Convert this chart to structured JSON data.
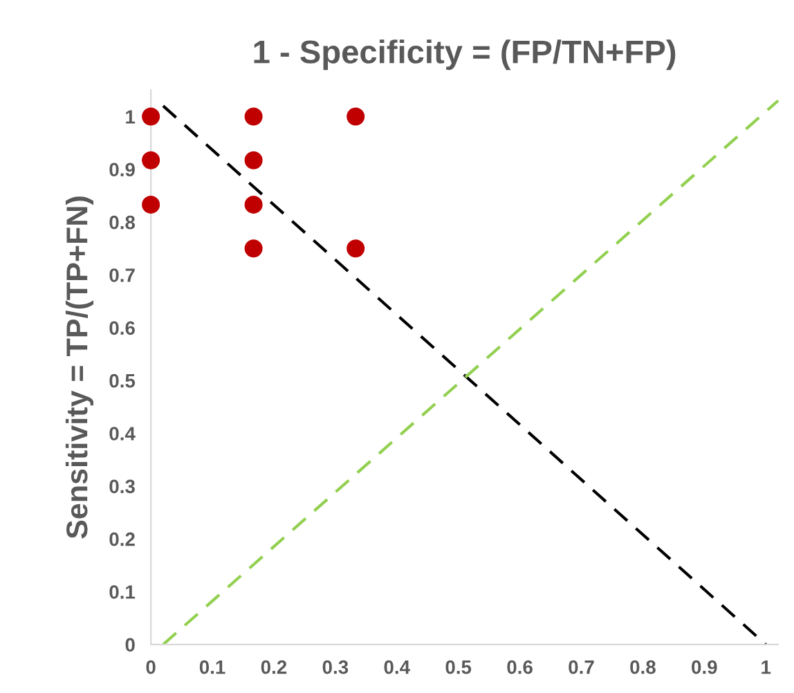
{
  "chart_data": {
    "type": "scatter",
    "xlabel": "1 - Specificity = (FP/TN+FP)",
    "ylabel": "Sensitivity = TP/(TP+FN)",
    "xlim": [
      0,
      1.02
    ],
    "ylim": [
      0,
      1.05
    ],
    "xticks": [
      0,
      0.1,
      0.2,
      0.3,
      0.4,
      0.5,
      0.6,
      0.7,
      0.8,
      0.9,
      1
    ],
    "yticks": [
      0,
      0.1,
      0.2,
      0.3,
      0.4,
      0.5,
      0.6,
      0.7,
      0.8,
      0.9,
      1
    ],
    "grid": false,
    "legend": false,
    "marker": "circle",
    "series": [
      {
        "type": "line",
        "color": "#000000",
        "line_style": "dashed",
        "marker": "none",
        "x": [
          0.02,
          1
        ],
        "values": [
          1.02,
          0
        ]
      },
      {
        "type": "line",
        "color": "#92d050",
        "line_style": "dashed",
        "marker": "none",
        "x": [
          0.02,
          1.02
        ],
        "values": [
          0,
          1.03
        ]
      },
      {
        "color": "#c00000",
        "x": [
          0,
          0,
          0,
          0.167,
          0.167,
          0.167,
          0.167,
          0.333,
          0.333
        ],
        "values": [
          1,
          0.917,
          0.833,
          1,
          0.917,
          0.833,
          0.75,
          1,
          0.75
        ]
      }
    ]
  }
}
